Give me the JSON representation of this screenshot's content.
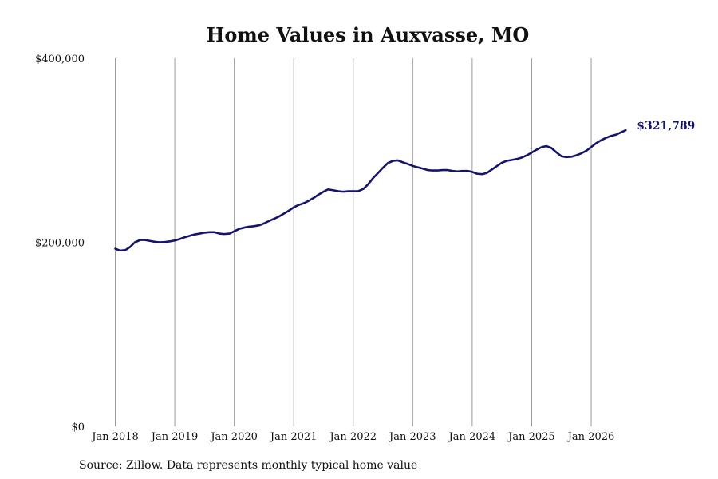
{
  "chart_data": {
    "type": "line",
    "title": "Home Values in Auxvasse, MO",
    "xlabel": "",
    "ylabel": "",
    "ylim": [
      0,
      400000
    ],
    "y_ticks": [
      {
        "value": 0,
        "label": "$0"
      },
      {
        "value": 200000,
        "label": "$200,000"
      },
      {
        "value": 400000,
        "label": "$400,000"
      }
    ],
    "x_ticks": [
      {
        "value": 2018,
        "label": "Jan 2018"
      },
      {
        "value": 2019,
        "label": "Jan 2019"
      },
      {
        "value": 2020,
        "label": "Jan 2020"
      },
      {
        "value": 2021,
        "label": "Jan 2021"
      },
      {
        "value": 2022,
        "label": "Jan 2022"
      },
      {
        "value": 2023,
        "label": "Jan 2023"
      },
      {
        "value": 2024,
        "label": "Jan 2024"
      },
      {
        "value": 2025,
        "label": "Jan 2025"
      },
      {
        "value": 2026,
        "label": "Jan 2026"
      }
    ],
    "xlim": [
      2017.8,
      2027.4
    ],
    "grid": "vertical",
    "line_color": "#14146b",
    "end_label": "$321,789",
    "source": "Source: Zillow. Data represents monthly typical home value",
    "series": [
      {
        "values": [
          [
            2018.0,
            193000
          ],
          [
            2018.08,
            191000
          ],
          [
            2018.17,
            191500
          ],
          [
            2018.25,
            195000
          ],
          [
            2018.33,
            200000
          ],
          [
            2018.42,
            202500
          ],
          [
            2018.5,
            202500
          ],
          [
            2018.58,
            201500
          ],
          [
            2018.67,
            200500
          ],
          [
            2018.75,
            200000
          ],
          [
            2018.83,
            200300
          ],
          [
            2018.92,
            201000
          ],
          [
            2019.0,
            202000
          ],
          [
            2019.08,
            203500
          ],
          [
            2019.17,
            205500
          ],
          [
            2019.25,
            207000
          ],
          [
            2019.33,
            208500
          ],
          [
            2019.42,
            209500
          ],
          [
            2019.5,
            210500
          ],
          [
            2019.58,
            211000
          ],
          [
            2019.67,
            211000
          ],
          [
            2019.75,
            209500
          ],
          [
            2019.83,
            209000
          ],
          [
            2019.92,
            209500
          ],
          [
            2020.0,
            212000
          ],
          [
            2020.08,
            214500
          ],
          [
            2020.17,
            216000
          ],
          [
            2020.25,
            217000
          ],
          [
            2020.33,
            217500
          ],
          [
            2020.42,
            218500
          ],
          [
            2020.5,
            220500
          ],
          [
            2020.58,
            223000
          ],
          [
            2020.67,
            225500
          ],
          [
            2020.75,
            228000
          ],
          [
            2020.83,
            231000
          ],
          [
            2020.92,
            234500
          ],
          [
            2021.0,
            238000
          ],
          [
            2021.08,
            240500
          ],
          [
            2021.17,
            242500
          ],
          [
            2021.25,
            245000
          ],
          [
            2021.33,
            248000
          ],
          [
            2021.42,
            252000
          ],
          [
            2021.5,
            255000
          ],
          [
            2021.58,
            257500
          ],
          [
            2021.67,
            256500
          ],
          [
            2021.75,
            255500
          ],
          [
            2021.83,
            255000
          ],
          [
            2021.92,
            255500
          ],
          [
            2022.0,
            255500
          ],
          [
            2022.08,
            255500
          ],
          [
            2022.17,
            258000
          ],
          [
            2022.25,
            263000
          ],
          [
            2022.33,
            269500
          ],
          [
            2022.42,
            275500
          ],
          [
            2022.5,
            281000
          ],
          [
            2022.58,
            286000
          ],
          [
            2022.67,
            288500
          ],
          [
            2022.75,
            289000
          ],
          [
            2022.83,
            287000
          ],
          [
            2022.92,
            285000
          ],
          [
            2023.0,
            283000
          ],
          [
            2023.08,
            281500
          ],
          [
            2023.17,
            280000
          ],
          [
            2023.25,
            278500
          ],
          [
            2023.33,
            278000
          ],
          [
            2023.42,
            278000
          ],
          [
            2023.5,
            278500
          ],
          [
            2023.58,
            278500
          ],
          [
            2023.67,
            277500
          ],
          [
            2023.75,
            277000
          ],
          [
            2023.83,
            277500
          ],
          [
            2023.92,
            277500
          ],
          [
            2024.0,
            276500
          ],
          [
            2024.08,
            274500
          ],
          [
            2024.17,
            274000
          ],
          [
            2024.25,
            275500
          ],
          [
            2024.33,
            279000
          ],
          [
            2024.42,
            283000
          ],
          [
            2024.5,
            286500
          ],
          [
            2024.58,
            288500
          ],
          [
            2024.67,
            289500
          ],
          [
            2024.75,
            290500
          ],
          [
            2024.83,
            292000
          ],
          [
            2024.92,
            294500
          ],
          [
            2025.0,
            297500
          ],
          [
            2025.08,
            300500
          ],
          [
            2025.17,
            303500
          ],
          [
            2025.25,
            304500
          ],
          [
            2025.33,
            302500
          ],
          [
            2025.42,
            297500
          ],
          [
            2025.5,
            293500
          ],
          [
            2025.58,
            292500
          ],
          [
            2025.67,
            293000
          ],
          [
            2025.75,
            294500
          ],
          [
            2025.83,
            296500
          ],
          [
            2025.92,
            299500
          ],
          [
            2026.0,
            303500
          ],
          [
            2026.08,
            307500
          ],
          [
            2026.17,
            311000
          ],
          [
            2026.25,
            313500
          ],
          [
            2026.33,
            315500
          ],
          [
            2026.42,
            317000
          ],
          [
            2026.5,
            319500
          ],
          [
            2026.58,
            321789
          ]
        ]
      }
    ]
  }
}
